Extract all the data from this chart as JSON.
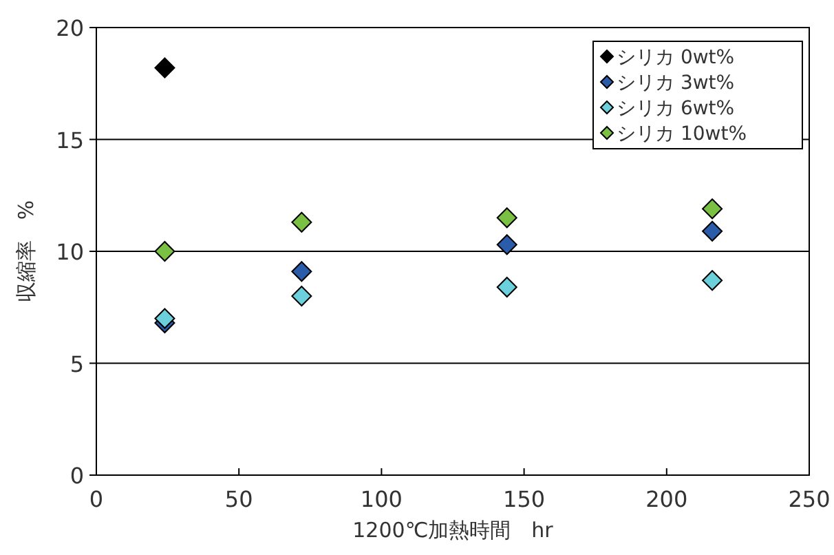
{
  "chart_data": {
    "type": "scatter",
    "xlabel": "1200℃加熱時間　hr",
    "ylabel": "収縮率　%",
    "xlim": [
      0,
      250
    ],
    "xticks": [
      0,
      50,
      100,
      150,
      200,
      250
    ],
    "ylim": [
      0,
      20
    ],
    "yticks": [
      0,
      5,
      10,
      15,
      20
    ],
    "grid": "y",
    "legend": "top right",
    "marker": "diamond",
    "series": [
      {
        "name": "シリカ 0wt%",
        "color": "#000000",
        "x": [
          24
        ],
        "values": [
          18.2
        ]
      },
      {
        "name": "シリカ 3wt%",
        "color": "#2a5caa",
        "x": [
          24,
          72,
          144,
          216
        ],
        "values": [
          6.8,
          9.1,
          10.3,
          10.9
        ]
      },
      {
        "name": "シリカ 6wt%",
        "color": "#6cd0dc",
        "x": [
          24,
          72,
          144,
          216
        ],
        "values": [
          7.0,
          8.0,
          8.4,
          8.7
        ]
      },
      {
        "name": "シリカ 10wt%",
        "color": "#7ac143",
        "x": [
          24,
          72,
          144,
          216
        ],
        "values": [
          10.0,
          11.3,
          11.5,
          11.9
        ]
      }
    ]
  }
}
